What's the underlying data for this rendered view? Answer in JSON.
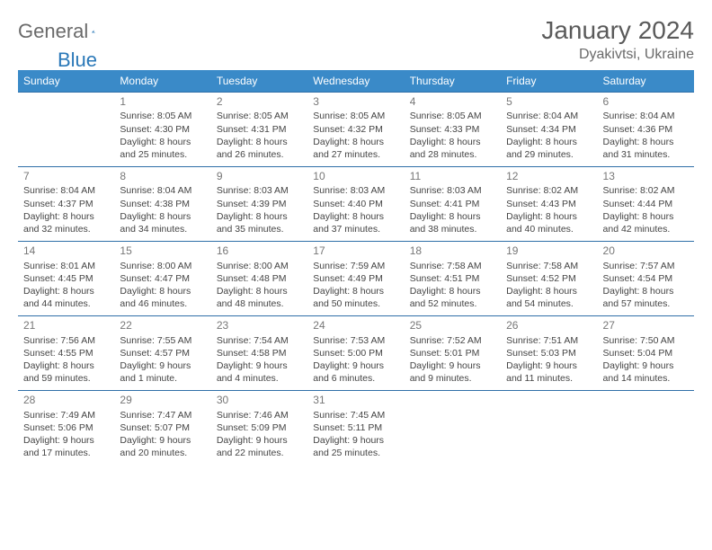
{
  "brand": {
    "part1": "General",
    "part2": "Blue"
  },
  "title": "January 2024",
  "location": "Dyakivtsi, Ukraine",
  "colors": {
    "header_bg": "#3a8ac8",
    "header_text": "#ffffff",
    "row_border": "#2f6fa8",
    "daynum": "#777777",
    "body_text": "#444444",
    "title_text": "#5a5a5a",
    "logo_gray": "#6a6a6a",
    "logo_blue": "#2a78b8"
  },
  "weekdays": [
    "Sunday",
    "Monday",
    "Tuesday",
    "Wednesday",
    "Thursday",
    "Friday",
    "Saturday"
  ],
  "weeks": [
    [
      null,
      {
        "n": "1",
        "sr": "8:05 AM",
        "ss": "4:30 PM",
        "dl": "8 hours and 25 minutes."
      },
      {
        "n": "2",
        "sr": "8:05 AM",
        "ss": "4:31 PM",
        "dl": "8 hours and 26 minutes."
      },
      {
        "n": "3",
        "sr": "8:05 AM",
        "ss": "4:32 PM",
        "dl": "8 hours and 27 minutes."
      },
      {
        "n": "4",
        "sr": "8:05 AM",
        "ss": "4:33 PM",
        "dl": "8 hours and 28 minutes."
      },
      {
        "n": "5",
        "sr": "8:04 AM",
        "ss": "4:34 PM",
        "dl": "8 hours and 29 minutes."
      },
      {
        "n": "6",
        "sr": "8:04 AM",
        "ss": "4:36 PM",
        "dl": "8 hours and 31 minutes."
      }
    ],
    [
      {
        "n": "7",
        "sr": "8:04 AM",
        "ss": "4:37 PM",
        "dl": "8 hours and 32 minutes."
      },
      {
        "n": "8",
        "sr": "8:04 AM",
        "ss": "4:38 PM",
        "dl": "8 hours and 34 minutes."
      },
      {
        "n": "9",
        "sr": "8:03 AM",
        "ss": "4:39 PM",
        "dl": "8 hours and 35 minutes."
      },
      {
        "n": "10",
        "sr": "8:03 AM",
        "ss": "4:40 PM",
        "dl": "8 hours and 37 minutes."
      },
      {
        "n": "11",
        "sr": "8:03 AM",
        "ss": "4:41 PM",
        "dl": "8 hours and 38 minutes."
      },
      {
        "n": "12",
        "sr": "8:02 AM",
        "ss": "4:43 PM",
        "dl": "8 hours and 40 minutes."
      },
      {
        "n": "13",
        "sr": "8:02 AM",
        "ss": "4:44 PM",
        "dl": "8 hours and 42 minutes."
      }
    ],
    [
      {
        "n": "14",
        "sr": "8:01 AM",
        "ss": "4:45 PM",
        "dl": "8 hours and 44 minutes."
      },
      {
        "n": "15",
        "sr": "8:00 AM",
        "ss": "4:47 PM",
        "dl": "8 hours and 46 minutes."
      },
      {
        "n": "16",
        "sr": "8:00 AM",
        "ss": "4:48 PM",
        "dl": "8 hours and 48 minutes."
      },
      {
        "n": "17",
        "sr": "7:59 AM",
        "ss": "4:49 PM",
        "dl": "8 hours and 50 minutes."
      },
      {
        "n": "18",
        "sr": "7:58 AM",
        "ss": "4:51 PM",
        "dl": "8 hours and 52 minutes."
      },
      {
        "n": "19",
        "sr": "7:58 AM",
        "ss": "4:52 PM",
        "dl": "8 hours and 54 minutes."
      },
      {
        "n": "20",
        "sr": "7:57 AM",
        "ss": "4:54 PM",
        "dl": "8 hours and 57 minutes."
      }
    ],
    [
      {
        "n": "21",
        "sr": "7:56 AM",
        "ss": "4:55 PM",
        "dl": "8 hours and 59 minutes."
      },
      {
        "n": "22",
        "sr": "7:55 AM",
        "ss": "4:57 PM",
        "dl": "9 hours and 1 minute."
      },
      {
        "n": "23",
        "sr": "7:54 AM",
        "ss": "4:58 PM",
        "dl": "9 hours and 4 minutes."
      },
      {
        "n": "24",
        "sr": "7:53 AM",
        "ss": "5:00 PM",
        "dl": "9 hours and 6 minutes."
      },
      {
        "n": "25",
        "sr": "7:52 AM",
        "ss": "5:01 PM",
        "dl": "9 hours and 9 minutes."
      },
      {
        "n": "26",
        "sr": "7:51 AM",
        "ss": "5:03 PM",
        "dl": "9 hours and 11 minutes."
      },
      {
        "n": "27",
        "sr": "7:50 AM",
        "ss": "5:04 PM",
        "dl": "9 hours and 14 minutes."
      }
    ],
    [
      {
        "n": "28",
        "sr": "7:49 AM",
        "ss": "5:06 PM",
        "dl": "9 hours and 17 minutes."
      },
      {
        "n": "29",
        "sr": "7:47 AM",
        "ss": "5:07 PM",
        "dl": "9 hours and 20 minutes."
      },
      {
        "n": "30",
        "sr": "7:46 AM",
        "ss": "5:09 PM",
        "dl": "9 hours and 22 minutes."
      },
      {
        "n": "31",
        "sr": "7:45 AM",
        "ss": "5:11 PM",
        "dl": "9 hours and 25 minutes."
      },
      null,
      null,
      null
    ]
  ],
  "labels": {
    "sunrise": "Sunrise:",
    "sunset": "Sunset:",
    "daylight": "Daylight:"
  }
}
